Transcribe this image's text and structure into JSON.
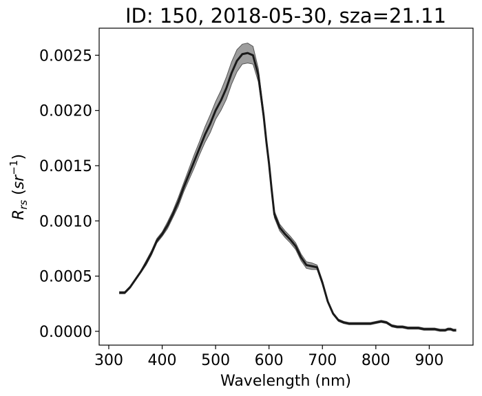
{
  "chart_data": {
    "type": "line",
    "title": "ID: 150, 2018-05-30, sza=21.11",
    "xlabel": "Wavelength (nm)",
    "ylabel": "R_rs (sr^-1)",
    "ylabel_main": "R",
    "ylabel_sub": "rs",
    "ylabel_unit_open": " (",
    "ylabel_unit_base": "sr",
    "ylabel_unit_sup": "−1",
    "ylabel_unit_close": ")",
    "xlim": [
      282,
      982
    ],
    "ylim": [
      -0.000125,
      0.002745
    ],
    "xticks": [
      300,
      400,
      500,
      600,
      700,
      800,
      900
    ],
    "xtick_labels": [
      "300",
      "400",
      "500",
      "600",
      "700",
      "800",
      "900"
    ],
    "yticks": [
      0,
      0.0005,
      0.001,
      0.0015,
      0.002,
      0.0025
    ],
    "ytick_labels": [
      "0.0000",
      "0.0005",
      "0.0010",
      "0.0015",
      "0.0020",
      "0.0025"
    ],
    "grid": false,
    "colors": {
      "line": "#1a1a1a",
      "band": "#8c8c8c",
      "band_edge": "#555555"
    },
    "series": [
      {
        "role": "mean",
        "x": [
          320,
          330,
          340,
          350,
          360,
          370,
          380,
          390,
          400,
          410,
          420,
          430,
          440,
          450,
          460,
          470,
          480,
          490,
          500,
          510,
          520,
          530,
          540,
          550,
          560,
          570,
          580,
          590,
          595,
          600,
          605,
          610,
          620,
          630,
          640,
          650,
          660,
          670,
          680,
          690,
          700,
          710,
          720,
          730,
          740,
          750,
          760,
          770,
          780,
          790,
          800,
          810,
          820,
          830,
          840,
          850,
          860,
          870,
          880,
          890,
          900,
          910,
          920,
          930,
          935,
          940,
          945,
          950
        ],
        "y": [
          0.00035,
          0.00035,
          0.0004,
          0.00047,
          0.00054,
          0.00062,
          0.00071,
          0.00082,
          0.00088,
          0.00096,
          0.00106,
          0.00117,
          0.0013,
          0.00142,
          0.00154,
          0.00166,
          0.00178,
          0.00188,
          0.002,
          0.00209,
          0.0022,
          0.00234,
          0.00245,
          0.00251,
          0.00252,
          0.0025,
          0.00232,
          0.00195,
          0.00172,
          0.00152,
          0.00128,
          0.00106,
          0.00094,
          0.00088,
          0.00083,
          0.00077,
          0.00067,
          0.0006,
          0.00059,
          0.00058,
          0.00044,
          0.00027,
          0.00016,
          0.0001,
          8e-05,
          7e-05,
          7e-05,
          7e-05,
          7e-05,
          7e-05,
          8e-05,
          9e-05,
          8e-05,
          5e-05,
          4e-05,
          4e-05,
          3e-05,
          3e-05,
          3e-05,
          2e-05,
          2e-05,
          2e-05,
          1e-05,
          1e-05,
          2e-05,
          2e-05,
          1e-05,
          1e-05
        ]
      },
      {
        "role": "band_upper",
        "x": [
          320,
          330,
          340,
          350,
          360,
          370,
          380,
          390,
          400,
          410,
          420,
          430,
          440,
          450,
          460,
          470,
          480,
          490,
          500,
          510,
          520,
          530,
          540,
          550,
          560,
          570,
          580,
          590,
          595,
          600,
          605,
          610,
          620,
          630,
          640,
          650,
          660,
          670,
          680,
          690,
          700,
          710,
          720,
          730,
          740,
          750,
          760,
          770,
          780,
          790,
          800,
          810,
          820,
          830,
          840,
          850,
          860,
          870,
          880,
          890,
          900,
          910,
          920,
          930,
          935,
          940,
          945,
          950
        ],
        "y": [
          0.00036,
          0.00036,
          0.00041,
          0.00048,
          0.00055,
          0.00064,
          0.00073,
          0.00084,
          0.0009,
          0.00099,
          0.00109,
          0.00121,
          0.00134,
          0.00147,
          0.0016,
          0.00172,
          0.00185,
          0.00196,
          0.00208,
          0.00218,
          0.0023,
          0.00244,
          0.00255,
          0.0026,
          0.00261,
          0.00258,
          0.00238,
          0.00199,
          0.00176,
          0.00155,
          0.00131,
          0.00109,
          0.00097,
          0.00091,
          0.00086,
          0.0008,
          0.0007,
          0.00063,
          0.00062,
          0.0006,
          0.00046,
          0.00028,
          0.00017,
          0.00011,
          9e-05,
          8e-05,
          8e-05,
          8e-05,
          8e-05,
          8e-05,
          9e-05,
          0.0001,
          9e-05,
          6e-05,
          5e-05,
          5e-05,
          4e-05,
          4e-05,
          4e-05,
          3e-05,
          3e-05,
          3e-05,
          2e-05,
          2e-05,
          3e-05,
          3e-05,
          2e-05,
          2e-05
        ]
      },
      {
        "role": "band_lower",
        "x": [
          320,
          330,
          340,
          350,
          360,
          370,
          380,
          390,
          400,
          410,
          420,
          430,
          440,
          450,
          460,
          470,
          480,
          490,
          500,
          510,
          520,
          530,
          540,
          550,
          560,
          570,
          580,
          590,
          595,
          600,
          605,
          610,
          620,
          630,
          640,
          650,
          660,
          670,
          680,
          690,
          700,
          710,
          720,
          730,
          740,
          750,
          760,
          770,
          780,
          790,
          800,
          810,
          820,
          830,
          840,
          850,
          860,
          870,
          880,
          890,
          900,
          910,
          920,
          930,
          935,
          940,
          945,
          950
        ],
        "y": [
          0.00034,
          0.00034,
          0.00039,
          0.00046,
          0.00053,
          0.0006,
          0.00069,
          0.0008,
          0.00086,
          0.00093,
          0.00103,
          0.00113,
          0.00126,
          0.00137,
          0.00148,
          0.0016,
          0.00171,
          0.0018,
          0.00192,
          0.002,
          0.0021,
          0.00224,
          0.00235,
          0.00242,
          0.00243,
          0.00242,
          0.00226,
          0.00191,
          0.00168,
          0.00149,
          0.00125,
          0.00103,
          0.00091,
          0.00085,
          0.0008,
          0.00074,
          0.00064,
          0.00057,
          0.00056,
          0.00056,
          0.00042,
          0.00026,
          0.00015,
          9e-05,
          7e-05,
          6e-05,
          6e-05,
          6e-05,
          6e-05,
          6e-05,
          7e-05,
          8e-05,
          7e-05,
          4e-05,
          3e-05,
          3e-05,
          2e-05,
          2e-05,
          2e-05,
          1e-05,
          1e-05,
          1e-05,
          0.0,
          0.0,
          1e-05,
          1e-05,
          0.0,
          0.0
        ]
      }
    ]
  }
}
